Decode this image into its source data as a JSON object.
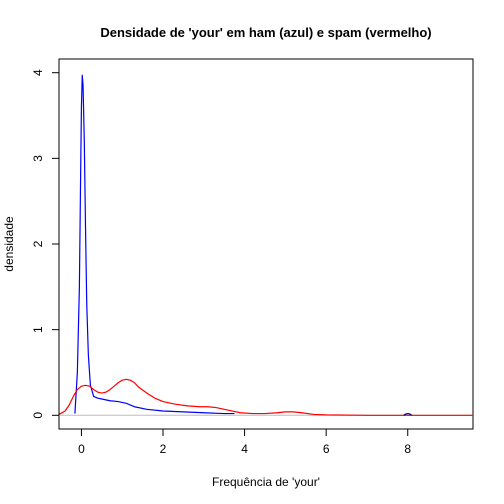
{
  "chart_data": {
    "type": "line",
    "title": "Densidade de 'your' em ham (azul) e spam (vermelho)",
    "xlabel": "Frequência de 'your'",
    "ylabel": "densidade",
    "xlim": [
      -0.55,
      9.6
    ],
    "ylim": [
      -0.16,
      4.16
    ],
    "x_ticks": [
      "0",
      "2",
      "4",
      "6",
      "8"
    ],
    "y_ticks": [
      "0",
      "1",
      "2",
      "3",
      "4"
    ],
    "grid": false,
    "legend": "none",
    "series": [
      {
        "color": "#0000ff",
        "x": [
          -0.16,
          -0.1,
          -0.05,
          -0.02,
          0.0,
          0.02,
          0.04,
          0.07,
          0.1,
          0.13,
          0.17,
          0.22,
          0.3,
          0.4,
          0.5,
          0.7,
          0.9,
          1.1,
          1.3,
          1.6,
          2.0,
          2.5,
          3.0,
          3.5,
          3.75
        ],
        "y": [
          0.02,
          0.5,
          1.5,
          2.8,
          3.6,
          3.97,
          3.85,
          3.2,
          2.2,
          1.3,
          0.7,
          0.35,
          0.22,
          0.2,
          0.19,
          0.17,
          0.16,
          0.14,
          0.1,
          0.07,
          0.05,
          0.04,
          0.03,
          0.02,
          0.02
        ]
      },
      {
        "color": "#ff0000",
        "x": [
          -0.55,
          -0.4,
          -0.3,
          -0.2,
          -0.1,
          0.0,
          0.1,
          0.2,
          0.3,
          0.4,
          0.5,
          0.6,
          0.7,
          0.8,
          0.9,
          1.0,
          1.1,
          1.2,
          1.3,
          1.4,
          1.6,
          1.8,
          2.0,
          2.3,
          2.6,
          2.9,
          3.1,
          3.3,
          3.6,
          3.9,
          4.2,
          4.5,
          4.8,
          5.0,
          5.2,
          5.4,
          5.7,
          6.0,
          7.0,
          8.0,
          9.0,
          9.6
        ],
        "y": [
          0.01,
          0.05,
          0.12,
          0.22,
          0.3,
          0.34,
          0.35,
          0.34,
          0.3,
          0.27,
          0.26,
          0.27,
          0.3,
          0.34,
          0.38,
          0.41,
          0.42,
          0.41,
          0.38,
          0.33,
          0.26,
          0.2,
          0.16,
          0.13,
          0.11,
          0.1,
          0.1,
          0.09,
          0.06,
          0.03,
          0.02,
          0.02,
          0.03,
          0.04,
          0.04,
          0.03,
          0.01,
          0.005,
          0.0,
          0.0,
          0.0,
          0.0
        ]
      },
      {
        "color": "#000080",
        "x": [
          7.9,
          7.95,
          8.0,
          8.05,
          8.1
        ],
        "y": [
          0.0,
          0.015,
          0.02,
          0.015,
          0.0
        ]
      }
    ]
  }
}
